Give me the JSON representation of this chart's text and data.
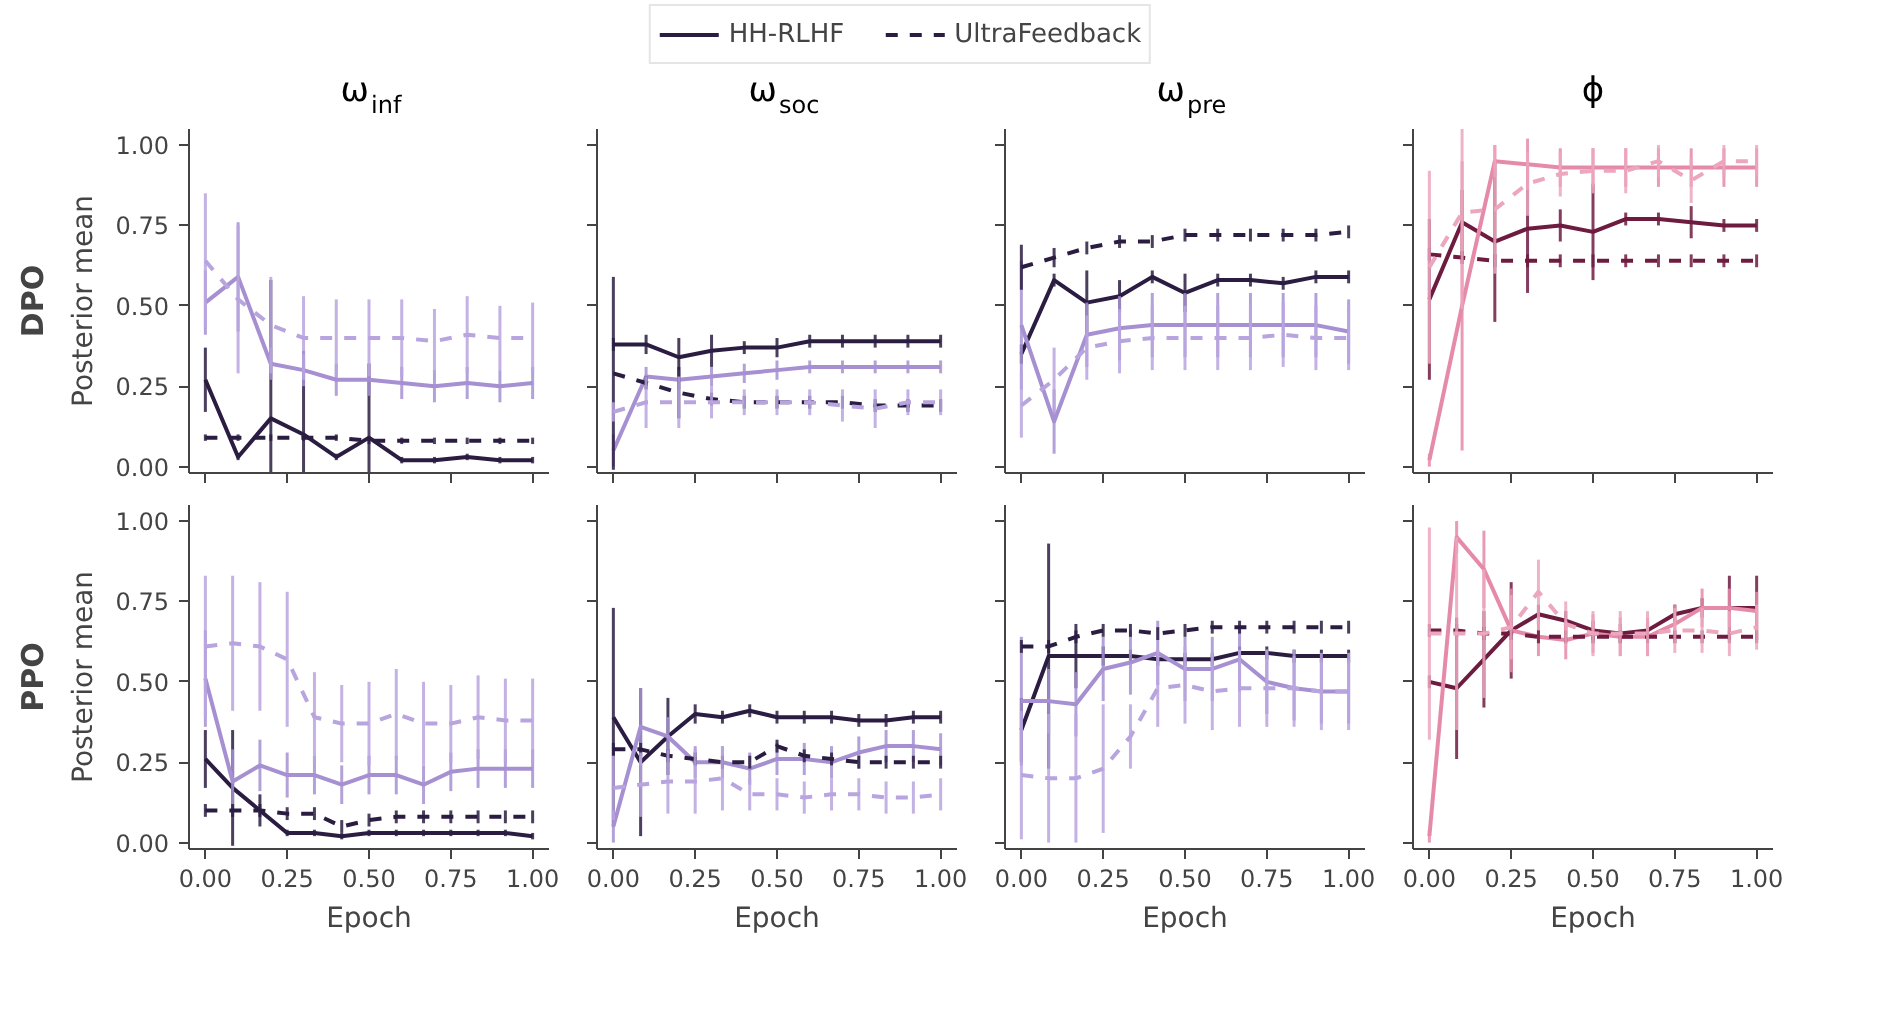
{
  "chart_data": [
    {
      "type": "line",
      "title": "ω$_{inf}$",
      "ylabel": "Posterior mean",
      "annotations": [
        "DPO"
      ],
      "legend": "top",
      "grid": false,
      "tick_labels": "y",
      "xlim": [
        -0.05,
        1.05
      ],
      "ylim": [
        -0.02,
        1.05
      ],
      "xticks": [
        {
          "value": 0,
          "label": null
        },
        {
          "value": 0.25,
          "label": null
        },
        {
          "value": 0.5,
          "label": null
        },
        {
          "value": 0.75,
          "label": null
        },
        {
          "value": 1,
          "label": null
        }
      ],
      "yticks": [
        {
          "value": 0,
          "label": "0.00"
        },
        {
          "value": 0.25,
          "label": "0.25"
        },
        {
          "value": 0.5,
          "label": "0.50"
        },
        {
          "value": 0.75,
          "label": "0.75"
        },
        {
          "value": 1,
          "label": "1.00"
        }
      ],
      "x": [
        0,
        0.1,
        0.2,
        0.3,
        0.4,
        0.5,
        0.6,
        0.7,
        0.8,
        0.9,
        1
      ],
      "series": [
        {
          "name": "HH-RLHF",
          "line_style": "solid",
          "color": "#2b1d42",
          "values": [
            0.27,
            0.03,
            0.15,
            0.1,
            0.03,
            0.09,
            0.02,
            0.02,
            0.03,
            0.02,
            0.02
          ],
          "errors": [
            0.1,
            0.01,
            0.43,
            0.26,
            0.01,
            0.23,
            0.01,
            0.01,
            0.01,
            0.01,
            0.01
          ]
        },
        {
          "line_style": "solid",
          "color": "#a690d2",
          "values": [
            0.51,
            0.59,
            0.32,
            0.3,
            0.27,
            0.27,
            0.26,
            0.25,
            0.26,
            0.25,
            0.26
          ],
          "errors": [
            0.1,
            0.17,
            0.05,
            0.05,
            0.05,
            0.05,
            0.05,
            0.05,
            0.05,
            0.05,
            0.05
          ]
        },
        {
          "name": "UltraFeedback",
          "line_style": "dashed",
          "color": "#2b1d42",
          "values": [
            0.09,
            0.09,
            0.09,
            0.09,
            0.09,
            0.08,
            0.08,
            0.08,
            0.08,
            0.08,
            0.08
          ],
          "errors": [
            0.01,
            0.01,
            0.01,
            0.01,
            0.01,
            0.01,
            0.01,
            0.01,
            0.01,
            0.01,
            0.01
          ]
        },
        {
          "line_style": "dashed",
          "color": "#b8a4de",
          "values": [
            0.64,
            0.52,
            0.44,
            0.4,
            0.4,
            0.4,
            0.4,
            0.39,
            0.41,
            0.4,
            0.4
          ],
          "errors": [
            0.21,
            0.23,
            0.15,
            0.13,
            0.12,
            0.12,
            0.12,
            0.1,
            0.12,
            0.1,
            0.11
          ]
        }
      ]
    },
    {
      "type": "line",
      "title": "ω$_{soc}$",
      "grid": false,
      "tick_labels": false,
      "xlim": [
        -0.05,
        1.05
      ],
      "ylim": [
        -0.02,
        1.05
      ],
      "xticks": [
        {
          "value": 0,
          "label": null
        },
        {
          "value": 0.25,
          "label": null
        },
        {
          "value": 0.5,
          "label": null
        },
        {
          "value": 0.75,
          "label": null
        },
        {
          "value": 1,
          "label": null
        }
      ],
      "yticks": [
        {
          "value": 0,
          "label": null
        },
        {
          "value": 0.25,
          "label": null
        },
        {
          "value": 0.5,
          "label": null
        },
        {
          "value": 0.75,
          "label": null
        },
        {
          "value": 1,
          "label": null
        }
      ],
      "x": [
        0,
        0.1,
        0.2,
        0.3,
        0.4,
        0.5,
        0.6,
        0.7,
        0.8,
        0.9,
        1
      ],
      "series": [
        {
          "line_style": "solid",
          "color": "#2b1d42",
          "values": [
            0.38,
            0.38,
            0.34,
            0.36,
            0.37,
            0.37,
            0.39,
            0.39,
            0.39,
            0.39,
            0.39
          ],
          "errors": [
            0.02,
            0.03,
            0.06,
            0.05,
            0.02,
            0.03,
            0.02,
            0.02,
            0.02,
            0.02,
            0.02
          ]
        },
        {
          "line_style": "solid",
          "color": "#a690d2",
          "values": [
            0.05,
            0.28,
            0.27,
            0.28,
            0.29,
            0.3,
            0.31,
            0.31,
            0.31,
            0.31,
            0.31
          ],
          "errors": [
            0.05,
            0.03,
            0.03,
            0.03,
            0.03,
            0.03,
            0.02,
            0.02,
            0.02,
            0.02,
            0.02
          ]
        },
        {
          "line_style": "dashed",
          "color": "#2b1d42",
          "values": [
            0.29,
            0.26,
            0.23,
            0.21,
            0.2,
            0.2,
            0.2,
            0.2,
            0.19,
            0.19,
            0.19
          ],
          "errors": [
            0.3,
            0.02,
            0.08,
            0.02,
            0.02,
            0.02,
            0.02,
            0.02,
            0.02,
            0.02,
            0.02
          ]
        },
        {
          "line_style": "dashed",
          "color": "#b8a4de",
          "values": [
            0.17,
            0.2,
            0.2,
            0.2,
            0.2,
            0.2,
            0.2,
            0.19,
            0.18,
            0.2,
            0.2
          ],
          "errors": [
            0.03,
            0.08,
            0.08,
            0.05,
            0.04,
            0.04,
            0.04,
            0.05,
            0.06,
            0.04,
            0.04
          ]
        }
      ]
    },
    {
      "type": "line",
      "title": "ω$_{pre}$",
      "grid": false,
      "tick_labels": false,
      "xlim": [
        -0.05,
        1.05
      ],
      "ylim": [
        -0.02,
        1.05
      ],
      "xticks": [
        {
          "value": 0,
          "label": null
        },
        {
          "value": 0.25,
          "label": null
        },
        {
          "value": 0.5,
          "label": null
        },
        {
          "value": 0.75,
          "label": null
        },
        {
          "value": 1,
          "label": null
        }
      ],
      "yticks": [
        {
          "value": 0,
          "label": null
        },
        {
          "value": 0.25,
          "label": null
        },
        {
          "value": 0.5,
          "label": null
        },
        {
          "value": 0.75,
          "label": null
        },
        {
          "value": 1,
          "label": null
        }
      ],
      "x": [
        0,
        0.1,
        0.2,
        0.3,
        0.4,
        0.5,
        0.6,
        0.7,
        0.8,
        0.9,
        1
      ],
      "series": [
        {
          "line_style": "solid",
          "color": "#2b1d42",
          "values": [
            0.35,
            0.58,
            0.51,
            0.53,
            0.59,
            0.54,
            0.58,
            0.58,
            0.57,
            0.59,
            0.59
          ],
          "errors": [
            0.03,
            0.02,
            0.1,
            0.05,
            0.02,
            0.06,
            0.02,
            0.02,
            0.02,
            0.02,
            0.02
          ]
        },
        {
          "line_style": "solid",
          "color": "#a690d2",
          "values": [
            0.44,
            0.14,
            0.41,
            0.43,
            0.44,
            0.44,
            0.44,
            0.44,
            0.44,
            0.44,
            0.42
          ],
          "errors": [
            0.2,
            0.1,
            0.1,
            0.1,
            0.1,
            0.1,
            0.1,
            0.1,
            0.1,
            0.1,
            0.1
          ]
        },
        {
          "line_style": "dashed",
          "color": "#2b1d42",
          "values": [
            0.62,
            0.65,
            0.68,
            0.7,
            0.7,
            0.72,
            0.72,
            0.72,
            0.72,
            0.72,
            0.73
          ],
          "errors": [
            0.07,
            0.03,
            0.02,
            0.02,
            0.02,
            0.02,
            0.02,
            0.02,
            0.02,
            0.02,
            0.02
          ]
        },
        {
          "line_style": "dashed",
          "color": "#b8a4de",
          "values": [
            0.19,
            0.27,
            0.37,
            0.39,
            0.4,
            0.4,
            0.4,
            0.4,
            0.41,
            0.4,
            0.4
          ],
          "errors": [
            0.1,
            0.1,
            0.1,
            0.1,
            0.1,
            0.1,
            0.1,
            0.1,
            0.1,
            0.1,
            0.1
          ]
        }
      ]
    },
    {
      "type": "line",
      "title": "ϕ",
      "grid": false,
      "tick_labels": false,
      "xlim": [
        -0.05,
        1.05
      ],
      "ylim": [
        -0.02,
        1.05
      ],
      "xticks": [
        {
          "value": 0,
          "label": null
        },
        {
          "value": 0.25,
          "label": null
        },
        {
          "value": 0.5,
          "label": null
        },
        {
          "value": 0.75,
          "label": null
        },
        {
          "value": 1,
          "label": null
        }
      ],
      "yticks": [
        {
          "value": 0,
          "label": null
        },
        {
          "value": 0.25,
          "label": null
        },
        {
          "value": 0.5,
          "label": null
        },
        {
          "value": 0.75,
          "label": null
        },
        {
          "value": 1,
          "label": null
        }
      ],
      "x": [
        0,
        0.1,
        0.2,
        0.3,
        0.4,
        0.5,
        0.6,
        0.7,
        0.8,
        0.9,
        1
      ],
      "series": [
        {
          "line_style": "solid",
          "color": "#6e1b40",
          "values": [
            0.52,
            0.76,
            0.7,
            0.74,
            0.75,
            0.73,
            0.77,
            0.77,
            0.76,
            0.75,
            0.75
          ],
          "errors": [
            0.25,
            0.1,
            0.25,
            0.2,
            0.05,
            0.15,
            0.02,
            0.02,
            0.05,
            0.02,
            0.02
          ]
        },
        {
          "line_style": "solid",
          "color": "#e58aa8",
          "values": [
            0.02,
            0.5,
            0.95,
            0.94,
            0.93,
            0.93,
            0.93,
            0.93,
            0.93,
            0.93,
            0.93
          ],
          "errors": [
            0.02,
            0.45,
            0.05,
            0.08,
            0.06,
            0.06,
            0.06,
            0.06,
            0.06,
            0.06,
            0.06
          ]
        },
        {
          "line_style": "dashed",
          "color": "#6e1b40",
          "values": [
            0.66,
            0.65,
            0.64,
            0.64,
            0.64,
            0.64,
            0.64,
            0.64,
            0.64,
            0.64,
            0.64
          ],
          "errors": [
            0.02,
            0.02,
            0.02,
            0.02,
            0.02,
            0.02,
            0.02,
            0.02,
            0.02,
            0.02,
            0.02
          ]
        },
        {
          "line_style": "dashed",
          "color": "#eca6bd",
          "values": [
            0.62,
            0.79,
            0.8,
            0.88,
            0.91,
            0.92,
            0.92,
            0.95,
            0.89,
            0.95,
            0.95
          ],
          "errors": [
            0.3,
            0.3,
            0.2,
            0.1,
            0.07,
            0.07,
            0.07,
            0.05,
            0.07,
            0.05,
            0.05
          ]
        }
      ]
    },
    {
      "type": "line",
      "xlabel": "Epoch",
      "ylabel": "Posterior mean",
      "annotations": [
        "PPO"
      ],
      "grid": false,
      "xlim": [
        -0.05,
        1.05
      ],
      "ylim": [
        -0.02,
        1.05
      ],
      "xticks": [
        {
          "value": 0,
          "label": "0.00"
        },
        {
          "value": 0.25,
          "label": "0.25"
        },
        {
          "value": 0.5,
          "label": "0.50"
        },
        {
          "value": 0.75,
          "label": "0.75"
        },
        {
          "value": 1,
          "label": "1.00"
        }
      ],
      "yticks": [
        {
          "value": 0,
          "label": "0.00"
        },
        {
          "value": 0.25,
          "label": "0.25"
        },
        {
          "value": 0.5,
          "label": "0.50"
        },
        {
          "value": 0.75,
          "label": "0.75"
        },
        {
          "value": 1,
          "label": "1.00"
        }
      ],
      "x": [
        0,
        0.0833,
        0.1667,
        0.25,
        0.3333,
        0.4167,
        0.5,
        0.5833,
        0.6667,
        0.75,
        0.8333,
        0.9167,
        1
      ],
      "series": [
        {
          "line_style": "solid",
          "color": "#2b1d42",
          "values": [
            0.26,
            0.17,
            0.1,
            0.03,
            0.03,
            0.02,
            0.03,
            0.03,
            0.03,
            0.03,
            0.03,
            0.03,
            0.02
          ],
          "errors": [
            0.09,
            0.18,
            0.05,
            0.01,
            0.01,
            0.01,
            0.01,
            0.01,
            0.01,
            0.01,
            0.01,
            0.01,
            0.01
          ]
        },
        {
          "line_style": "solid",
          "color": "#a690d2",
          "values": [
            0.51,
            0.19,
            0.24,
            0.21,
            0.21,
            0.18,
            0.21,
            0.21,
            0.18,
            0.22,
            0.23,
            0.23,
            0.23
          ],
          "errors": [
            0.15,
            0.1,
            0.08,
            0.07,
            0.06,
            0.06,
            0.06,
            0.06,
            0.06,
            0.06,
            0.06,
            0.06,
            0.06
          ]
        },
        {
          "line_style": "dashed",
          "color": "#2b1d42",
          "values": [
            0.1,
            0.1,
            0.1,
            0.09,
            0.09,
            0.05,
            0.07,
            0.08,
            0.08,
            0.08,
            0.08,
            0.08,
            0.08
          ],
          "errors": [
            0.02,
            0.02,
            0.02,
            0.02,
            0.02,
            0.02,
            0.02,
            0.02,
            0.02,
            0.02,
            0.02,
            0.02,
            0.02
          ]
        },
        {
          "line_style": "dashed",
          "color": "#b8a4de",
          "values": [
            0.61,
            0.62,
            0.61,
            0.57,
            0.39,
            0.37,
            0.37,
            0.4,
            0.37,
            0.37,
            0.39,
            0.38,
            0.38
          ],
          "errors": [
            0.22,
            0.21,
            0.2,
            0.21,
            0.14,
            0.12,
            0.13,
            0.14,
            0.13,
            0.12,
            0.13,
            0.13,
            0.13
          ]
        }
      ]
    },
    {
      "type": "line",
      "xlabel": "Epoch",
      "grid": false,
      "tick_labels": "x",
      "xlim": [
        -0.05,
        1.05
      ],
      "ylim": [
        -0.02,
        1.05
      ],
      "xticks": [
        {
          "value": 0,
          "label": "0.00"
        },
        {
          "value": 0.25,
          "label": "0.25"
        },
        {
          "value": 0.5,
          "label": "0.50"
        },
        {
          "value": 0.75,
          "label": "0.75"
        },
        {
          "value": 1,
          "label": "1.00"
        }
      ],
      "yticks": [
        {
          "value": 0,
          "label": null
        },
        {
          "value": 0.25,
          "label": null
        },
        {
          "value": 0.5,
          "label": null
        },
        {
          "value": 0.75,
          "label": null
        },
        {
          "value": 1,
          "label": null
        }
      ],
      "x": [
        0,
        0.0833,
        0.1667,
        0.25,
        0.3333,
        0.4167,
        0.5,
        0.5833,
        0.6667,
        0.75,
        0.8333,
        0.9167,
        1
      ],
      "series": [
        {
          "line_style": "solid",
          "color": "#2b1d42",
          "values": [
            0.39,
            0.25,
            0.33,
            0.4,
            0.39,
            0.41,
            0.39,
            0.39,
            0.39,
            0.38,
            0.38,
            0.39,
            0.39
          ],
          "errors": [
            0.34,
            0.23,
            0.12,
            0.03,
            0.02,
            0.02,
            0.02,
            0.02,
            0.02,
            0.02,
            0.02,
            0.02,
            0.02
          ]
        },
        {
          "line_style": "solid",
          "color": "#a690d2",
          "values": [
            0.05,
            0.36,
            0.33,
            0.25,
            0.25,
            0.23,
            0.26,
            0.26,
            0.25,
            0.28,
            0.3,
            0.3,
            0.29
          ],
          "errors": [
            0.05,
            0.12,
            0.06,
            0.05,
            0.05,
            0.05,
            0.05,
            0.05,
            0.05,
            0.05,
            0.05,
            0.05,
            0.05
          ]
        },
        {
          "line_style": "dashed",
          "color": "#2b1d42",
          "values": [
            0.29,
            0.29,
            0.27,
            0.26,
            0.25,
            0.25,
            0.3,
            0.27,
            0.26,
            0.25,
            0.25,
            0.25,
            0.25
          ],
          "errors": [
            0.02,
            0.02,
            0.02,
            0.02,
            0.02,
            0.02,
            0.02,
            0.02,
            0.02,
            0.02,
            0.02,
            0.02,
            0.02
          ]
        },
        {
          "line_style": "dashed",
          "color": "#b8a4de",
          "values": [
            0.17,
            0.18,
            0.19,
            0.19,
            0.2,
            0.15,
            0.15,
            0.14,
            0.15,
            0.15,
            0.14,
            0.14,
            0.15
          ],
          "errors": [
            0.1,
            0.1,
            0.1,
            0.1,
            0.1,
            0.05,
            0.05,
            0.05,
            0.05,
            0.05,
            0.05,
            0.05,
            0.05
          ]
        }
      ]
    },
    {
      "type": "line",
      "xlabel": "Epoch",
      "grid": false,
      "tick_labels": "x",
      "xlim": [
        -0.05,
        1.05
      ],
      "ylim": [
        -0.02,
        1.05
      ],
      "xticks": [
        {
          "value": 0,
          "label": "0.00"
        },
        {
          "value": 0.25,
          "label": "0.25"
        },
        {
          "value": 0.5,
          "label": "0.50"
        },
        {
          "value": 0.75,
          "label": "0.75"
        },
        {
          "value": 1,
          "label": "1.00"
        }
      ],
      "yticks": [
        {
          "value": 0,
          "label": null
        },
        {
          "value": 0.25,
          "label": null
        },
        {
          "value": 0.5,
          "label": null
        },
        {
          "value": 0.75,
          "label": null
        },
        {
          "value": 1,
          "label": null
        }
      ],
      "x": [
        0,
        0.0833,
        0.1667,
        0.25,
        0.3333,
        0.4167,
        0.5,
        0.5833,
        0.6667,
        0.75,
        0.8333,
        0.9167,
        1
      ],
      "series": [
        {
          "line_style": "solid",
          "color": "#2b1d42",
          "values": [
            0.35,
            0.58,
            0.58,
            0.58,
            0.58,
            0.57,
            0.57,
            0.57,
            0.59,
            0.59,
            0.58,
            0.58,
            0.58
          ],
          "errors": [
            0.1,
            0.35,
            0.1,
            0.03,
            0.02,
            0.02,
            0.02,
            0.02,
            0.02,
            0.02,
            0.02,
            0.02,
            0.02
          ]
        },
        {
          "line_style": "solid",
          "color": "#a690d2",
          "values": [
            0.44,
            0.44,
            0.43,
            0.54,
            0.56,
            0.59,
            0.54,
            0.54,
            0.57,
            0.5,
            0.48,
            0.47,
            0.47
          ],
          "errors": [
            0.2,
            0.1,
            0.1,
            0.1,
            0.1,
            0.1,
            0.1,
            0.1,
            0.1,
            0.1,
            0.1,
            0.1,
            0.1
          ]
        },
        {
          "line_style": "dashed",
          "color": "#2b1d42",
          "values": [
            0.61,
            0.61,
            0.64,
            0.66,
            0.66,
            0.65,
            0.66,
            0.67,
            0.67,
            0.67,
            0.67,
            0.67,
            0.67
          ],
          "errors": [
            0.02,
            0.02,
            0.02,
            0.02,
            0.02,
            0.02,
            0.02,
            0.02,
            0.02,
            0.02,
            0.02,
            0.02,
            0.02
          ]
        },
        {
          "line_style": "dashed",
          "color": "#b8a4de",
          "values": [
            0.21,
            0.2,
            0.2,
            0.23,
            0.33,
            0.48,
            0.49,
            0.47,
            0.48,
            0.48,
            0.48,
            0.47,
            0.47
          ],
          "errors": [
            0.2,
            0.2,
            0.2,
            0.2,
            0.1,
            0.12,
            0.12,
            0.12,
            0.12,
            0.12,
            0.12,
            0.12,
            0.12
          ]
        }
      ]
    },
    {
      "type": "line",
      "xlabel": "Epoch",
      "grid": false,
      "tick_labels": "x",
      "xlim": [
        -0.05,
        1.05
      ],
      "ylim": [
        -0.02,
        1.05
      ],
      "xticks": [
        {
          "value": 0,
          "label": "0.00"
        },
        {
          "value": 0.25,
          "label": "0.25"
        },
        {
          "value": 0.5,
          "label": "0.50"
        },
        {
          "value": 0.75,
          "label": "0.75"
        },
        {
          "value": 1,
          "label": "1.00"
        }
      ],
      "yticks": [
        {
          "value": 0,
          "label": null
        },
        {
          "value": 0.25,
          "label": null
        },
        {
          "value": 0.5,
          "label": null
        },
        {
          "value": 0.75,
          "label": null
        },
        {
          "value": 1,
          "label": null
        }
      ],
      "x": [
        0,
        0.0833,
        0.1667,
        0.25,
        0.3333,
        0.4167,
        0.5,
        0.5833,
        0.6667,
        0.75,
        0.8333,
        0.9167,
        1
      ],
      "series": [
        {
          "line_style": "solid",
          "color": "#6e1b40",
          "values": [
            0.5,
            0.48,
            0.57,
            0.66,
            0.71,
            0.69,
            0.66,
            0.65,
            0.66,
            0.71,
            0.73,
            0.73,
            0.73
          ],
          "errors": [
            0.02,
            0.22,
            0.15,
            0.15,
            0.03,
            0.03,
            0.03,
            0.03,
            0.03,
            0.03,
            0.03,
            0.1,
            0.1
          ]
        },
        {
          "line_style": "solid",
          "color": "#e58aa8",
          "values": [
            0.02,
            0.95,
            0.85,
            0.66,
            0.64,
            0.63,
            0.65,
            0.64,
            0.64,
            0.68,
            0.73,
            0.73,
            0.72
          ],
          "errors": [
            0.02,
            0.05,
            0.12,
            0.13,
            0.06,
            0.06,
            0.06,
            0.06,
            0.06,
            0.06,
            0.06,
            0.06,
            0.06
          ]
        },
        {
          "line_style": "dashed",
          "color": "#6e1b40",
          "values": [
            0.66,
            0.66,
            0.65,
            0.65,
            0.64,
            0.64,
            0.64,
            0.64,
            0.64,
            0.64,
            0.64,
            0.64,
            0.64
          ],
          "errors": [
            0.02,
            0.02,
            0.02,
            0.02,
            0.02,
            0.02,
            0.02,
            0.02,
            0.02,
            0.02,
            0.02,
            0.02,
            0.02
          ]
        },
        {
          "line_style": "dashed",
          "color": "#eca6bd",
          "values": [
            0.65,
            0.65,
            0.65,
            0.67,
            0.78,
            0.68,
            0.65,
            0.65,
            0.65,
            0.66,
            0.66,
            0.65,
            0.67
          ],
          "errors": [
            0.33,
            0.3,
            0.2,
            0.1,
            0.1,
            0.07,
            0.07,
            0.07,
            0.07,
            0.07,
            0.07,
            0.07,
            0.07
          ]
        }
      ]
    }
  ]
}
